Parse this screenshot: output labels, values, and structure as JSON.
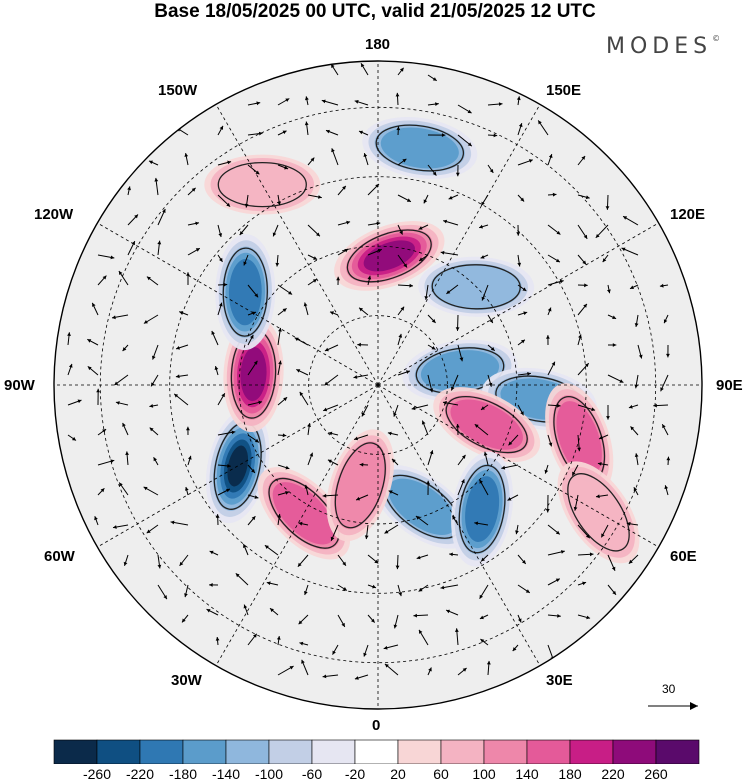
{
  "title": "Base 18/05/2025 00 UTC, valid 21/05/2025 12 UTC",
  "brand": "MODES",
  "brand_mark": "©",
  "longitude_labels": {
    "lon_180": "180",
    "lon_150e": "150E",
    "lon_120e": "120E",
    "lon_90e": "90E",
    "lon_60e": "60E",
    "lon_30e": "30E",
    "lon_0": "0",
    "lon_30w": "30W",
    "lon_60w": "60W",
    "lon_90w": "90W",
    "lon_120w": "120W",
    "lon_150w": "150W"
  },
  "vector_reference": "30",
  "colorbar": {
    "labels": [
      "-260",
      "-220",
      "-180",
      "-140",
      "-100",
      "-60",
      "-20",
      "20",
      "60",
      "100",
      "140",
      "180",
      "220",
      "260"
    ],
    "colors": [
      "#0b2a4a",
      "#0f4f82",
      "#2f78b3",
      "#5b9ccb",
      "#8fb7dd",
      "#c2cfe6",
      "#e6e6f2",
      "#ffffff",
      "#f8d6d6",
      "#f4b3c2",
      "#ee87aa",
      "#e45a99",
      "#c81e86",
      "#8e0b7a",
      "#5a0a6b"
    ]
  },
  "anomalies": [
    {
      "lon": -60,
      "lat": 55,
      "value": -260
    },
    {
      "lon": -95,
      "lat": 63,
      "value": 220
    },
    {
      "lon": -125,
      "lat": 55,
      "value": -160
    },
    {
      "lon": 175,
      "lat": 62,
      "value": 200
    },
    {
      "lon": 170,
      "lat": 38,
      "value": -140
    },
    {
      "lon": 135,
      "lat": 60,
      "value": -100
    },
    {
      "lon": 100,
      "lat": 72,
      "value": -150
    },
    {
      "lon": 85,
      "lat": 55,
      "value": -130
    },
    {
      "lon": 70,
      "lat": 65,
      "value": 120
    },
    {
      "lon": 75,
      "lat": 45,
      "value": 120
    },
    {
      "lon": 20,
      "lat": 62,
      "value": -140
    },
    {
      "lon": 40,
      "lat": 55,
      "value": -170
    },
    {
      "lon": -30,
      "lat": 58,
      "value": 150
    },
    {
      "lon": -10,
      "lat": 68,
      "value": 110
    },
    {
      "lon": 60,
      "lat": 35,
      "value": 60
    },
    {
      "lon": -150,
      "lat": 40,
      "value": 60
    }
  ]
}
